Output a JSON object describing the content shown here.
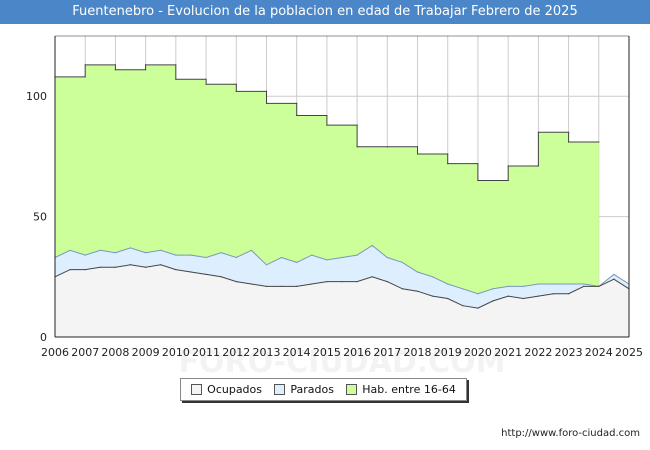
{
  "chart_data": {
    "type": "area",
    "title": "Fuentenebro - Evolucion de la poblacion en edad de Trabajar Febrero de 2025",
    "xlabel": "",
    "ylabel": "",
    "xlim": [
      2006,
      2025
    ],
    "ylim": [
      0,
      125
    ],
    "x_ticks": [
      "2006",
      "2007",
      "2008",
      "2009",
      "2010",
      "2011",
      "2012",
      "2013",
      "2014",
      "2015",
      "2016",
      "2017",
      "2018",
      "2019",
      "2020",
      "2021",
      "2022",
      "2023",
      "2024",
      "2025"
    ],
    "y_ticks": [
      "0",
      "50",
      "100"
    ],
    "grid": true,
    "legend_position": "bottom-center",
    "series": [
      {
        "name": "Hab. entre 16-64",
        "color": "#ccff99",
        "stroke": "#444444",
        "x": [
          2006,
          2007,
          2007,
          2008,
          2008,
          2009,
          2009,
          2010,
          2010,
          2011,
          2011,
          2012,
          2012,
          2013,
          2013,
          2014,
          2014,
          2015,
          2015,
          2016,
          2016,
          2017,
          2017,
          2018,
          2018,
          2019,
          2019,
          2020,
          2020,
          2021,
          2021,
          2022,
          2022,
          2023,
          2023,
          2024
        ],
        "values": [
          108,
          108,
          113,
          113,
          111,
          111,
          113,
          113,
          107,
          107,
          105,
          105,
          102,
          102,
          97,
          97,
          92,
          92,
          88,
          88,
          79,
          79,
          79,
          79,
          76,
          76,
          72,
          72,
          65,
          65,
          71,
          71,
          85,
          85,
          81,
          81
        ]
      },
      {
        "name": "Parados",
        "color": "#ddeeff",
        "stroke": "#7799bb",
        "x": [
          2006,
          2006.5,
          2007,
          2007.5,
          2008,
          2008.5,
          2009,
          2009.5,
          2010,
          2010.5,
          2011,
          2011.5,
          2012,
          2012.5,
          2013,
          2013.5,
          2014,
          2014.5,
          2015,
          2015.5,
          2016,
          2016.5,
          2017,
          2017.5,
          2018,
          2018.5,
          2019,
          2019.5,
          2020,
          2020.5,
          2021,
          2021.5,
          2022,
          2022.5,
          2023,
          2023.5,
          2024,
          2024.5,
          2025
        ],
        "values": [
          33,
          36,
          34,
          36,
          35,
          37,
          35,
          36,
          34,
          34,
          33,
          35,
          33,
          36,
          30,
          33,
          31,
          34,
          32,
          33,
          34,
          38,
          33,
          31,
          27,
          25,
          22,
          20,
          18,
          20,
          21,
          21,
          22,
          22,
          22,
          22,
          21,
          26,
          22
        ]
      },
      {
        "name": "Ocupados",
        "color": "#f4f4f4",
        "stroke": "#444444",
        "x": [
          2006,
          2006.5,
          2007,
          2007.5,
          2008,
          2008.5,
          2009,
          2009.5,
          2010,
          2010.5,
          2011,
          2011.5,
          2012,
          2012.5,
          2013,
          2013.5,
          2014,
          2014.5,
          2015,
          2015.5,
          2016,
          2016.5,
          2017,
          2017.5,
          2018,
          2018.5,
          2019,
          2019.5,
          2020,
          2020.5,
          2021,
          2021.5,
          2022,
          2022.5,
          2023,
          2023.5,
          2024,
          2024.5,
          2025
        ],
        "values": [
          25,
          28,
          28,
          29,
          29,
          30,
          29,
          30,
          28,
          27,
          26,
          25,
          23,
          22,
          21,
          21,
          21,
          22,
          23,
          23,
          23,
          25,
          23,
          20,
          19,
          17,
          16,
          13,
          12,
          15,
          17,
          16,
          17,
          18,
          18,
          21,
          21,
          24,
          20
        ]
      }
    ]
  },
  "legend": {
    "ocupados": "Ocupados",
    "parados": "Parados",
    "habitantes": "Hab. entre 16-64"
  },
  "watermark": "FORO-CIUDAD.COM",
  "footer_url": "http://www.foro-ciudad.com"
}
